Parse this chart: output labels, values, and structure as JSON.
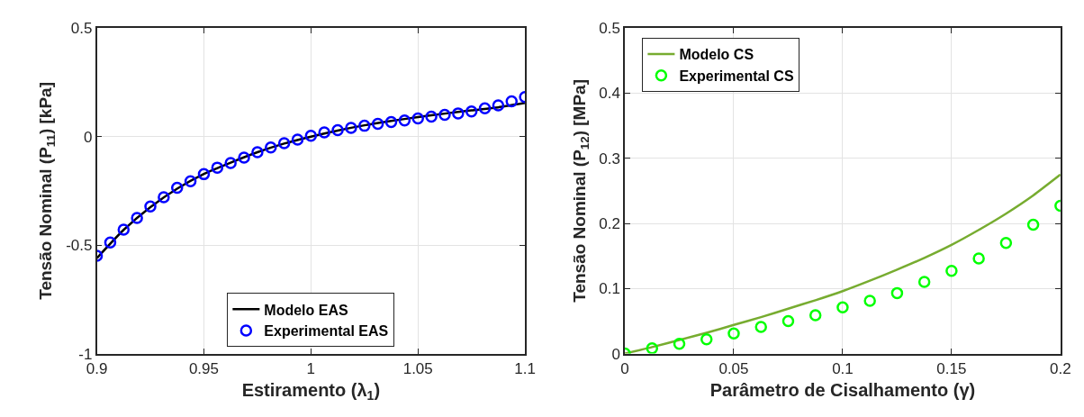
{
  "chart_data": [
    {
      "type": "line",
      "xlabel": "Estiramento (λ$_{1}$)",
      "ylabel": "Tensão Nominal (P$_{11}$) [kPa]",
      "xlim": [
        0.9,
        1.1
      ],
      "ylim": [
        -1,
        0.5
      ],
      "xticks": [
        0.9,
        0.95,
        1,
        1.05,
        1.1
      ],
      "yticks": [
        -1,
        -0.5,
        0,
        0.5
      ],
      "grid": true,
      "legend": "bottom",
      "series": [
        {
          "name": "Modelo EAS",
          "color": "#000000",
          "line_style": "solid",
          "marker": "none",
          "x": [
            0.9,
            0.9125,
            0.925,
            0.9375,
            0.95,
            0.9625,
            0.975,
            0.9875,
            1.0,
            1.0125,
            1.025,
            1.0375,
            1.05,
            1.0625,
            1.075,
            1.0875,
            1.1
          ],
          "values": [
            -0.56,
            -0.43,
            -0.325,
            -0.24,
            -0.172,
            -0.12,
            -0.072,
            -0.032,
            0.0,
            0.028,
            0.052,
            0.072,
            0.09,
            0.106,
            0.121,
            0.135,
            0.155
          ]
        },
        {
          "name": "Experimental EAS",
          "type": "scatter",
          "color": "#0000ff",
          "marker": "circle",
          "x": [
            0.9,
            0.90625,
            0.9125,
            0.91875,
            0.925,
            0.93125,
            0.9375,
            0.94375,
            0.95,
            0.95625,
            0.9625,
            0.96875,
            0.975,
            0.98125,
            0.9875,
            0.99375,
            1.0,
            1.00625,
            1.0125,
            1.01875,
            1.025,
            1.03125,
            1.0375,
            1.04375,
            1.05,
            1.05625,
            1.0625,
            1.06875,
            1.075,
            1.08125,
            1.0875,
            1.09375,
            1.1
          ],
          "values": [
            -0.549,
            -0.488,
            -0.429,
            -0.375,
            -0.322,
            -0.279,
            -0.236,
            -0.206,
            -0.173,
            -0.143,
            -0.122,
            -0.097,
            -0.072,
            -0.05,
            -0.03,
            -0.014,
            0.004,
            0.019,
            0.03,
            0.04,
            0.05,
            0.059,
            0.067,
            0.074,
            0.084,
            0.092,
            0.1,
            0.107,
            0.116,
            0.13,
            0.144,
            0.163,
            0.182
          ]
        }
      ]
    },
    {
      "type": "line",
      "xlabel": "Parâmetro de Cisalhamento (γ)",
      "ylabel": "Tensão Nominal (P$_{12}$) [MPa]",
      "xlim": [
        0,
        0.2
      ],
      "ylim": [
        0,
        0.5
      ],
      "xticks": [
        0,
        0.05,
        0.1,
        0.15,
        0.2
      ],
      "yticks": [
        0,
        0.1,
        0.2,
        0.3,
        0.4,
        0.5
      ],
      "grid": true,
      "legend": "top left",
      "series": [
        {
          "name": "Modelo CS",
          "color": "#77ac30",
          "line_style": "solid",
          "marker": "none",
          "x": [
            0,
            0.0125,
            0.025,
            0.0375,
            0.05,
            0.0625,
            0.075,
            0.0875,
            0.1,
            0.1125,
            0.125,
            0.1375,
            0.15,
            0.1625,
            0.175,
            0.1875,
            0.2
          ],
          "values": [
            0,
            0.01,
            0.021,
            0.032,
            0.044,
            0.056,
            0.069,
            0.082,
            0.096,
            0.112,
            0.129,
            0.147,
            0.167,
            0.19,
            0.215,
            0.243,
            0.275
          ]
        },
        {
          "name": "Experimental CS",
          "type": "scatter",
          "color": "#00ff00",
          "marker": "circle",
          "x": [
            0,
            0.0125,
            0.025,
            0.0375,
            0.05,
            0.0625,
            0.075,
            0.0875,
            0.1,
            0.1125,
            0.125,
            0.1375,
            0.15,
            0.1625,
            0.175,
            0.1875,
            0.2
          ],
          "values": [
            0,
            0.008,
            0.015,
            0.022,
            0.031,
            0.041,
            0.05,
            0.059,
            0.071,
            0.081,
            0.093,
            0.11,
            0.127,
            0.146,
            0.17,
            0.198,
            0.227
          ]
        }
      ]
    }
  ]
}
